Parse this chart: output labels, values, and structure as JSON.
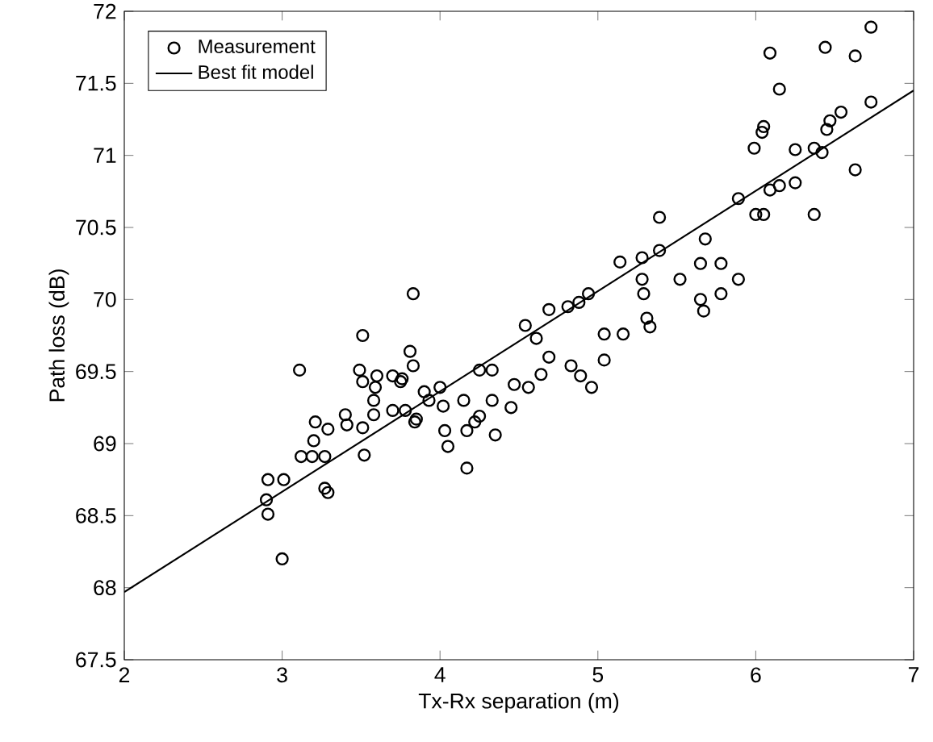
{
  "chart_data": {
    "type": "scatter",
    "xlabel": "Tx-Rx separation (m)",
    "ylabel": "Path loss (dB)",
    "xlim": [
      2,
      7
    ],
    "ylim": [
      67.5,
      72
    ],
    "xticks": [
      2,
      3,
      4,
      5,
      6,
      7
    ],
    "yticks": [
      67.5,
      68,
      68.5,
      69,
      69.5,
      70,
      70.5,
      71,
      71.5,
      72
    ],
    "grid": false,
    "legend": "top left",
    "series": [
      {
        "name": "Measurement",
        "marker": "circle",
        "color": "#000000",
        "x": [
          3.11,
          2.91,
          3.01,
          2.9,
          2.91,
          3.0,
          3.12,
          3.19,
          3.27,
          3.21,
          3.2,
          3.29,
          3.27,
          3.29,
          3.4,
          3.41,
          3.51,
          3.49,
          3.51,
          3.6,
          3.59,
          3.58,
          3.58,
          3.51,
          3.52,
          3.7,
          3.75,
          3.7,
          3.78,
          3.83,
          3.81,
          3.83,
          3.84,
          3.76,
          3.9,
          3.93,
          4.0,
          4.02,
          3.85,
          4.03,
          4.05,
          4.15,
          4.17,
          4.22,
          4.25,
          4.17,
          4.35,
          4.25,
          4.33,
          4.33,
          4.45,
          4.47,
          4.56,
          4.54,
          4.61,
          4.64,
          4.69,
          4.69,
          4.81,
          4.88,
          4.94,
          4.83,
          4.89,
          4.96,
          5.04,
          5.04,
          5.16,
          5.14,
          5.28,
          5.39,
          5.39,
          5.28,
          5.29,
          5.31,
          5.33,
          5.52,
          5.65,
          5.65,
          5.67,
          5.68,
          5.78,
          5.78,
          5.89,
          5.89,
          6.0,
          6.05,
          6.09,
          6.15,
          6.25,
          6.37,
          5.99,
          6.04,
          6.05,
          6.25,
          6.37,
          6.42,
          6.45,
          6.47,
          6.54,
          6.63,
          6.73,
          6.15,
          6.09,
          6.44,
          6.63,
          6.73
        ],
        "values": [
          69.51,
          68.75,
          68.75,
          68.61,
          68.51,
          68.2,
          68.91,
          68.91,
          68.91,
          69.15,
          69.02,
          69.1,
          68.69,
          68.66,
          69.2,
          69.13,
          69.75,
          69.51,
          69.43,
          69.47,
          69.39,
          69.3,
          69.2,
          69.11,
          68.92,
          69.47,
          69.43,
          69.23,
          69.23,
          70.04,
          69.64,
          69.54,
          69.15,
          69.45,
          69.36,
          69.3,
          69.39,
          69.26,
          69.17,
          69.09,
          68.98,
          69.3,
          69.09,
          69.15,
          69.19,
          68.83,
          69.06,
          69.51,
          69.51,
          69.3,
          69.25,
          69.41,
          69.39,
          69.82,
          69.73,
          69.48,
          69.6,
          69.93,
          69.95,
          69.98,
          70.04,
          69.54,
          69.47,
          69.39,
          69.58,
          69.76,
          69.76,
          70.26,
          70.29,
          70.34,
          70.57,
          70.14,
          70.04,
          69.87,
          69.81,
          70.14,
          70.25,
          70.0,
          69.92,
          70.42,
          70.25,
          70.04,
          70.14,
          70.7,
          70.59,
          70.59,
          70.76,
          70.79,
          70.81,
          70.59,
          71.05,
          71.16,
          71.2,
          71.04,
          71.05,
          71.02,
          71.18,
          71.24,
          71.3,
          70.9,
          71.37,
          71.46,
          71.71,
          71.75,
          71.69,
          71.89
        ]
      },
      {
        "name": "Best fit model",
        "type": "line",
        "marker": "none",
        "line_style": "solid",
        "color": "#000000",
        "x": [
          2,
          7
        ],
        "values": [
          67.97,
          71.45
        ]
      }
    ]
  }
}
